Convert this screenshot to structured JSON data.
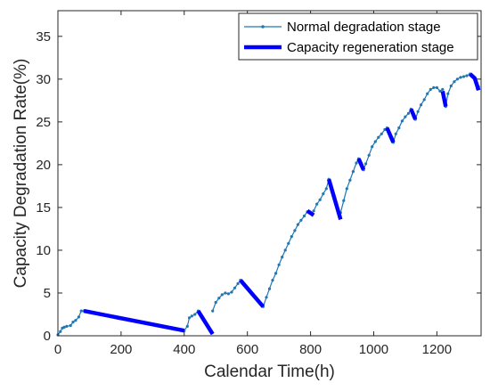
{
  "chart_data": {
    "type": "line",
    "xlabel": "Calendar Time(h)",
    "ylabel": "Capacity Degradation Rate(%)",
    "xlim": [
      0,
      1340
    ],
    "ylim": [
      0,
      38
    ],
    "xticks": [
      0,
      200,
      400,
      600,
      800,
      1000,
      1200
    ],
    "yticks": [
      0,
      5,
      10,
      15,
      20,
      25,
      30,
      35
    ],
    "grid": false,
    "legend_position": "top-right",
    "colors": {
      "normal": "#1f77b4",
      "regeneration": "#0000ff",
      "axis": "#262626"
    },
    "series": [
      {
        "name": "Normal degradation stage",
        "style": "line-with-dots",
        "color": "#1f77b4",
        "segments": [
          [
            [
              0,
              0.1
            ],
            [
              8,
              0.5
            ],
            [
              14,
              0.9
            ],
            [
              20,
              1.0
            ],
            [
              28,
              1.1
            ],
            [
              40,
              1.2
            ],
            [
              48,
              1.6
            ],
            [
              56,
              1.8
            ],
            [
              66,
              2.2
            ],
            [
              74,
              2.9
            ],
            [
              82,
              2.9
            ]
          ],
          [
            [
              400,
              0.6
            ],
            [
              410,
              1.1
            ],
            [
              416,
              2.1
            ],
            [
              424,
              2.3
            ],
            [
              434,
              2.5
            ],
            [
              444,
              2.9
            ]
          ],
          [
            [
              490,
              2.9
            ],
            [
              500,
              3.9
            ],
            [
              510,
              4.4
            ],
            [
              520,
              4.8
            ],
            [
              530,
              5.0
            ],
            [
              540,
              4.9
            ],
            [
              550,
              5.1
            ],
            [
              560,
              5.6
            ],
            [
              570,
              6.1
            ],
            [
              578,
              6.5
            ]
          ],
          [
            [
              650,
              3.4
            ],
            [
              660,
              4.5
            ],
            [
              670,
              5.5
            ],
            [
              680,
              6.5
            ],
            [
              690,
              7.3
            ],
            [
              700,
              8.3
            ],
            [
              710,
              9.2
            ],
            [
              720,
              10.0
            ],
            [
              730,
              10.8
            ],
            [
              740,
              11.6
            ],
            [
              750,
              12.3
            ],
            [
              760,
              13.0
            ],
            [
              770,
              13.5
            ],
            [
              780,
              14.0
            ],
            [
              790,
              14.5
            ]
          ],
          [
            [
              810,
              14.6
            ],
            [
              820,
              15.4
            ],
            [
              830,
              15.9
            ],
            [
              840,
              16.6
            ],
            [
              850,
              17.2
            ],
            [
              858,
              18.3
            ]
          ],
          [
            [
              895,
              14.4
            ],
            [
              905,
              15.8
            ],
            [
              915,
              17.2
            ],
            [
              925,
              18.2
            ],
            [
              935,
              19.2
            ],
            [
              945,
              20.2
            ],
            [
              952,
              20.7
            ]
          ],
          [
            [
              968,
              19.4
            ],
            [
              975,
              20.1
            ],
            [
              985,
              21.1
            ],
            [
              995,
              22.1
            ],
            [
              1005,
              22.7
            ],
            [
              1015,
              23.2
            ],
            [
              1025,
              23.6
            ],
            [
              1035,
              24.1
            ],
            [
              1042,
              24.3
            ]
          ],
          [
            [
              1062,
              22.6
            ],
            [
              1070,
              23.6
            ],
            [
              1080,
              24.3
            ],
            [
              1090,
              25.1
            ],
            [
              1100,
              25.6
            ],
            [
              1110,
              26.0
            ],
            [
              1118,
              26.5
            ]
          ],
          [
            [
              1132,
              25.3
            ],
            [
              1140,
              26.2
            ],
            [
              1150,
              27.0
            ],
            [
              1160,
              27.6
            ],
            [
              1170,
              28.3
            ],
            [
              1180,
              28.8
            ],
            [
              1190,
              29.0
            ],
            [
              1200,
              29.0
            ],
            [
              1210,
              28.6
            ],
            [
              1218,
              28.8
            ]
          ],
          [
            [
              1228,
              26.8
            ],
            [
              1235,
              28.3
            ],
            [
              1245,
              29.2
            ],
            [
              1255,
              29.7
            ],
            [
              1265,
              30.0
            ],
            [
              1275,
              30.2
            ],
            [
              1285,
              30.3
            ],
            [
              1295,
              30.4
            ],
            [
              1305,
              30.6
            ]
          ],
          [
            [
              1328,
              28.9
            ],
            [
              1332,
              29.1
            ]
          ]
        ]
      },
      {
        "name": "Capacity regeneration stage",
        "style": "thick-line",
        "color": "#0000ff",
        "segments": [
          [
            [
              82,
              2.9
            ],
            [
              400,
              0.6
            ]
          ],
          [
            [
              444,
              2.9
            ],
            [
              490,
              0.2
            ]
          ],
          [
            [
              578,
              6.5
            ],
            [
              650,
              3.4
            ]
          ],
          [
            [
              790,
              14.6
            ],
            [
              810,
              14.1
            ]
          ],
          [
            [
              858,
              18.3
            ],
            [
              895,
              13.6
            ]
          ],
          [
            [
              952,
              20.7
            ],
            [
              968,
              19.4
            ]
          ],
          [
            [
              1042,
              24.3
            ],
            [
              1062,
              22.6
            ]
          ],
          [
            [
              1118,
              26.5
            ],
            [
              1132,
              25.3
            ]
          ],
          [
            [
              1218,
              28.6
            ],
            [
              1228,
              26.8
            ]
          ],
          [
            [
              1305,
              30.6
            ],
            [
              1320,
              30.1
            ],
            [
              1332,
              28.7
            ]
          ]
        ]
      }
    ]
  }
}
